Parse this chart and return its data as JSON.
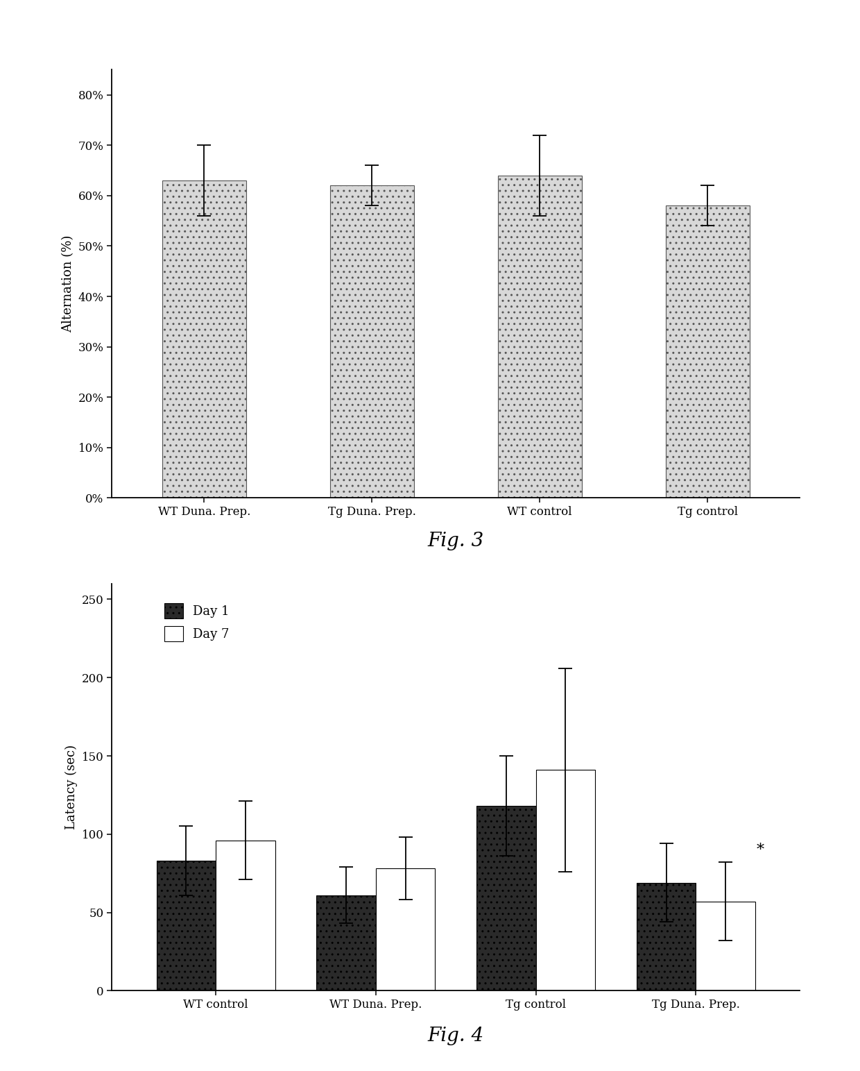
{
  "fig3": {
    "categories": [
      "WT Duna. Prep.",
      "Tg Duna. Prep.",
      "WT control",
      "Tg control"
    ],
    "values": [
      0.63,
      0.62,
      0.64,
      0.58
    ],
    "errors": [
      0.07,
      0.04,
      0.08,
      0.04
    ],
    "ylabel": "Alternation (%)",
    "ylim": [
      0,
      0.85
    ],
    "yticks": [
      0.0,
      0.1,
      0.2,
      0.3,
      0.4,
      0.5,
      0.6,
      0.7,
      0.8
    ],
    "yticklabels": [
      "0%",
      "10%",
      "20%",
      "30%",
      "40%",
      "50%",
      "60%",
      "70%",
      "80%"
    ],
    "bar_color": "#d8d8d8",
    "bar_hatch": "..",
    "bar_edgecolor": "#555555",
    "fig_label": "Fig. 3"
  },
  "fig4": {
    "categories": [
      "WT control",
      "WT Duna. Prep.",
      "Tg control",
      "Tg Duna. Prep."
    ],
    "day1_values": [
      83,
      61,
      118,
      69
    ],
    "day7_values": [
      96,
      78,
      141,
      57
    ],
    "day1_errors": [
      22,
      18,
      32,
      25
    ],
    "day7_errors": [
      25,
      20,
      65,
      25
    ],
    "ylabel": "Latency (sec)",
    "ylim": [
      0,
      260
    ],
    "yticks": [
      0,
      50,
      100,
      150,
      200,
      250
    ],
    "day1_color": "#2a2a2a",
    "day7_color": "#ffffff",
    "day1_hatch": "..",
    "day7_hatch": "",
    "fig_label": "Fig. 4",
    "asterisk_group": 3
  },
  "background_color": "#ffffff",
  "font_family": "DejaVu Serif"
}
